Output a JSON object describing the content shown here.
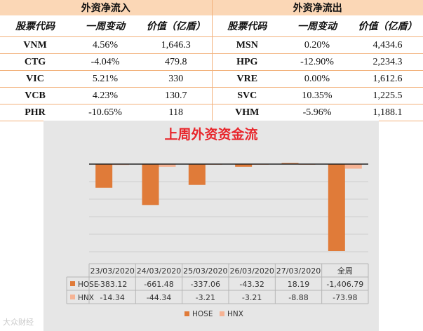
{
  "inflow": {
    "header": "外资净流入",
    "columns": [
      "股票代码",
      "一周变动",
      "价值（亿盾）"
    ],
    "rows": [
      {
        "code": "VNM",
        "change": "4.56%",
        "value": "1,646.3",
        "dir": "pos"
      },
      {
        "code": "CTG",
        "change": "-4.04%",
        "value": "479.8",
        "dir": "neg"
      },
      {
        "code": "VIC",
        "change": "5.21%",
        "value": "330",
        "dir": "pos"
      },
      {
        "code": "VCB",
        "change": "4.23%",
        "value": "130.7",
        "dir": "pos"
      },
      {
        "code": "PHR",
        "change": "-10.65%",
        "value": "118",
        "dir": "neg"
      }
    ]
  },
  "outflow": {
    "header": "外资净流出",
    "columns": [
      "股票代码",
      "一周变动",
      "价值（亿盾）"
    ],
    "rows": [
      {
        "code": "MSN",
        "change": "0.20%",
        "value": "4,434.6",
        "dir": "pos"
      },
      {
        "code": "HPG",
        "change": "-12.90%",
        "value": "2,234.3",
        "dir": "neg"
      },
      {
        "code": "VRE",
        "change": "0.00%",
        "value": "1,612.6",
        "dir": "zero"
      },
      {
        "code": "SVC",
        "change": "10.35%",
        "value": "1,225.5",
        "dir": "pos"
      },
      {
        "code": "VHM",
        "change": "-5.96%",
        "value": "1,188.1",
        "dir": "neg"
      }
    ]
  },
  "colors": {
    "pos": "#e8252b",
    "neg": "#21a34a",
    "zero": "#f0b400",
    "hose": "#e07b39",
    "hnx": "#f6b394",
    "header_bg": "#fbd7b6",
    "title": "#e8252b"
  },
  "chart_data": {
    "type": "bar",
    "title": "上周外资资金流",
    "categories": [
      "23/03/2020",
      "24/03/2020",
      "25/03/2020",
      "26/03/2020",
      "27/03/2020",
      "全周"
    ],
    "series": [
      {
        "name": "HOSE",
        "values": [
          -383.12,
          -661.48,
          -337.06,
          -43.32,
          18.19,
          -1406.79
        ],
        "labels": [
          "-383.12",
          "-661.48",
          "-337.06",
          "-43.32",
          "18.19",
          "-1,406.79"
        ]
      },
      {
        "name": "HNX",
        "values": [
          -14.34,
          -44.34,
          -3.21,
          -3.21,
          -8.88,
          -73.98
        ],
        "labels": [
          "-14.34",
          "-44.34",
          "-3.21",
          "-3.21",
          "-8.88",
          "-73.98"
        ]
      }
    ],
    "ylim": [
      -1406.79,
      18.19
    ],
    "legend": "bottom",
    "grid": true
  },
  "watermark": "大众财经"
}
